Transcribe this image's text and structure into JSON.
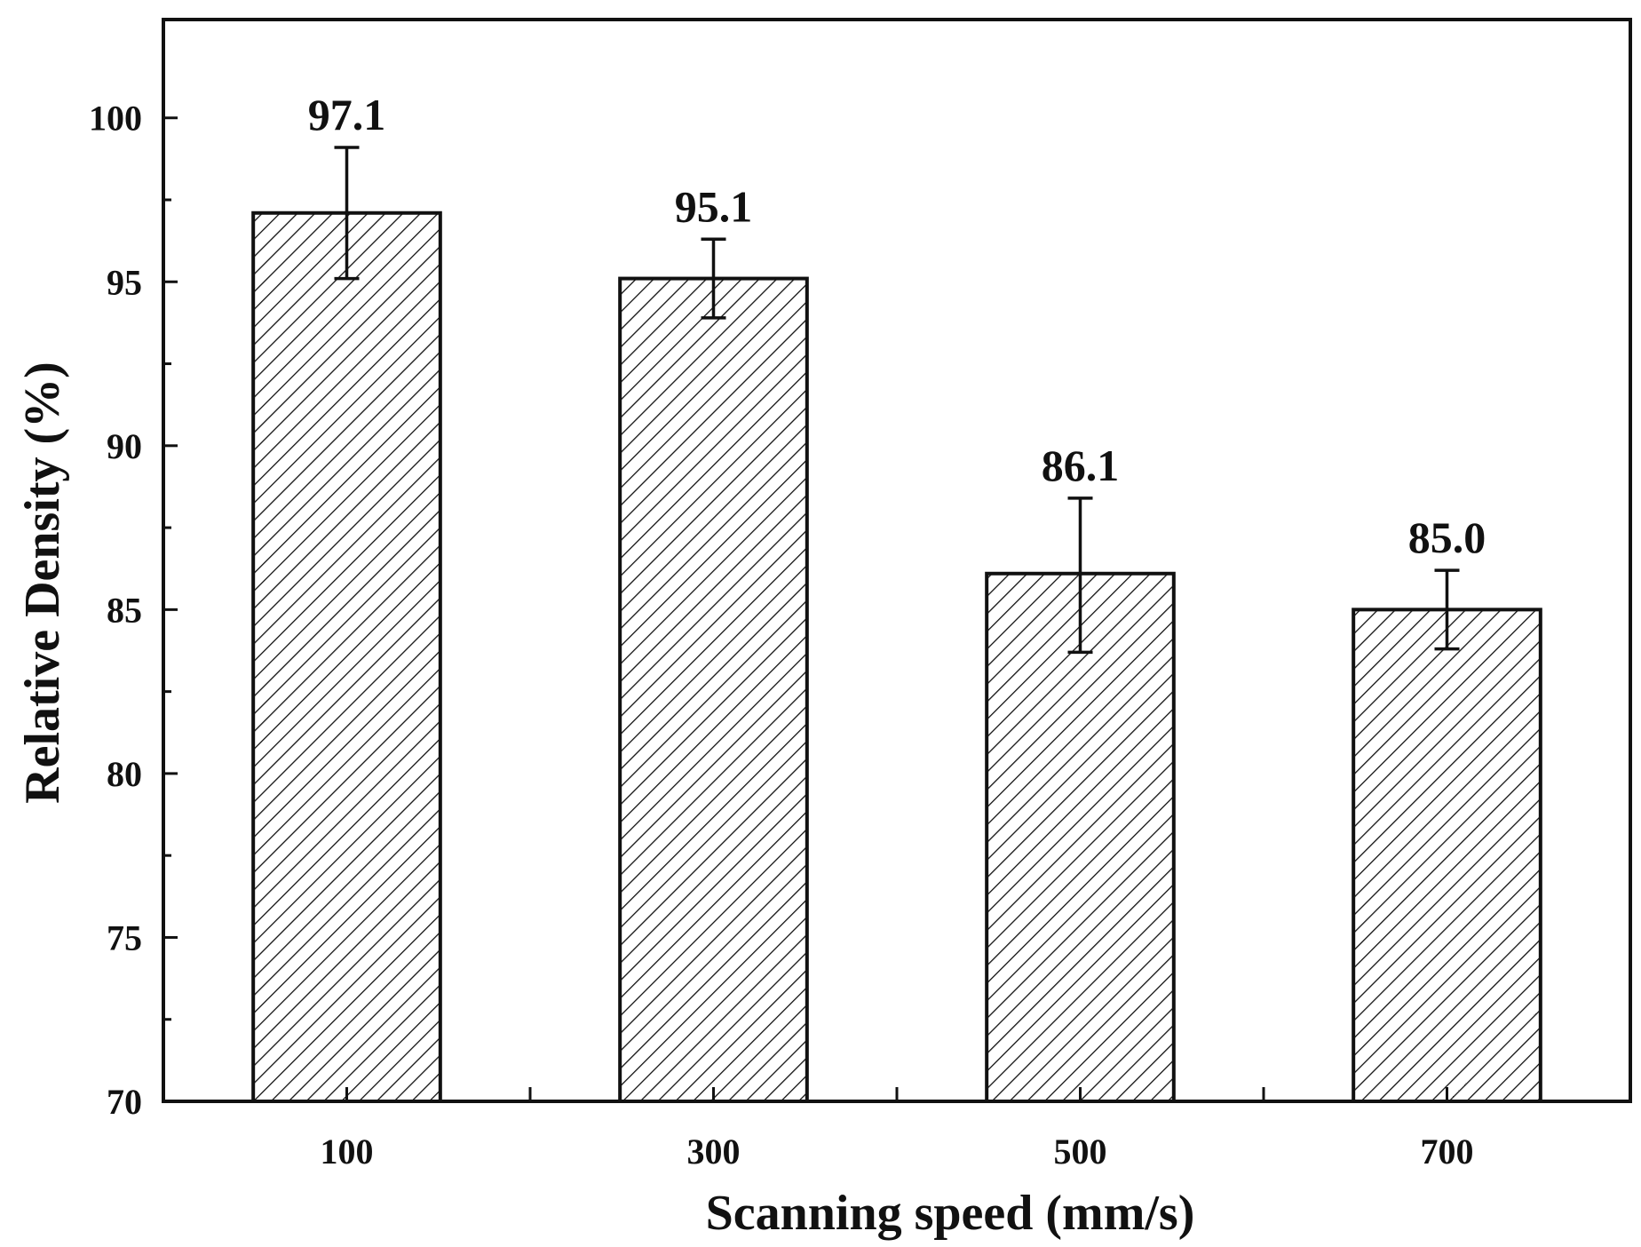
{
  "chart_data": {
    "type": "bar",
    "title": "",
    "xlabel": "Scanning speed (mm/s)",
    "ylabel": "Relative Density (%)",
    "categories": [
      "100",
      "300",
      "500",
      "700"
    ],
    "values": [
      97.1,
      95.1,
      86.1,
      85.0
    ],
    "value_labels": [
      "97.1",
      "95.1",
      "86.1",
      "85.0"
    ],
    "error_bars": [
      {
        "low": 95.1,
        "high": 99.1
      },
      {
        "low": 93.9,
        "high": 96.3
      },
      {
        "low": 83.7,
        "high": 88.4
      },
      {
        "low": 83.8,
        "high": 86.2
      }
    ],
    "ylim": [
      70,
      103
    ],
    "yticks": [
      70,
      75,
      80,
      85,
      90,
      95,
      100
    ],
    "ytick_labels": [
      "70",
      "75",
      "80",
      "85",
      "90",
      "95",
      "100"
    ],
    "bar_fill": "diagonal-hatch",
    "grid": false,
    "legend": "none"
  },
  "colors": {
    "ink": "#111111",
    "background": "#ffffff"
  }
}
